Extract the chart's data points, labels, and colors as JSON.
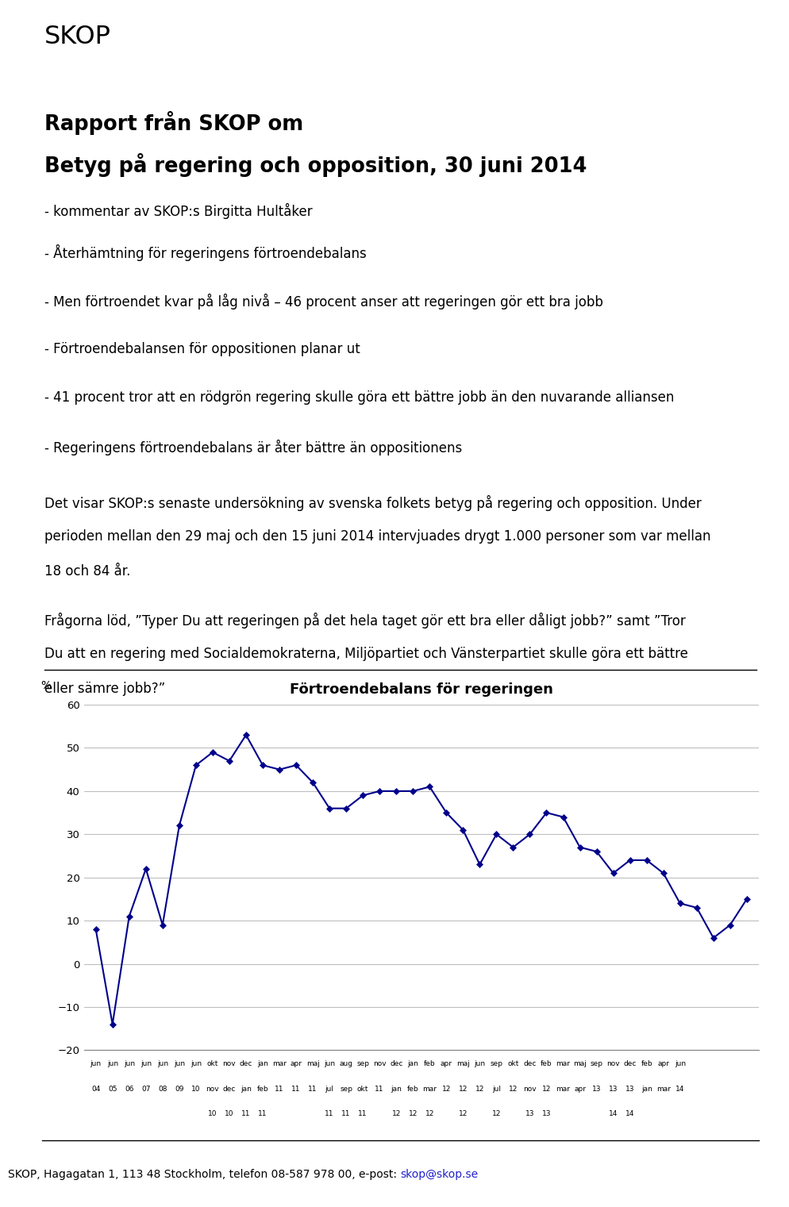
{
  "skop_header": "SKOP",
  "report_title_line1": "Rapport från SKOP om",
  "report_title_line2": "Betyg på regering och opposition, 30 juni 2014",
  "kommentar": "- kommentar av SKOP:s Birgitta Hultåker",
  "bullets": [
    "- Återhämtning för regeringens förtroendebalans",
    "- Men förtroendet kvar på låg nivå – 46 procent anser att regeringen gör ett bra jobb",
    "- Förtroendebalansen för oppositionen planar ut",
    "- 41 procent tror att en rödgrön regering skulle göra ett bättre jobb än den nuvarande alliansen",
    "- Regeringens förtroendebalans är åter bättre än oppositionens"
  ],
  "para1_lines": [
    "Det visar SKOP:s senaste undersökning av svenska folkets betyg på regering och opposition. Under",
    "perioden mellan den 29 maj och den 15 juni 2014 intervjuades drygt 1.000 personer som var mellan",
    "18 och 84 år."
  ],
  "para2_lines": [
    "Frågorna löd, ”Typer Du att regeringen på det hela taget gör ett bra eller dåligt jobb?” samt ”Tror",
    "Du att en regering med Socialdemokraterna, Miljöpartiet och Vänsterpartiet skulle göra ett bättre",
    "eller sämre jobb?”"
  ],
  "chart_title": "Förtroendebalans för regeringen",
  "ylabel_label": "%",
  "values": [
    8,
    -14,
    11,
    22,
    9,
    32,
    46,
    49,
    47,
    53,
    46,
    45,
    46,
    42,
    36,
    36,
    39,
    40,
    40,
    40,
    41,
    35,
    31,
    23,
    30,
    27,
    30,
    35,
    34,
    27,
    26,
    21,
    24,
    24,
    21,
    14,
    13,
    6,
    9,
    15
  ],
  "yticks": [
    -20,
    -10,
    0,
    10,
    20,
    30,
    40,
    50,
    60
  ],
  "ylim": [
    -20,
    60
  ],
  "line_color": "#00008B",
  "grid_color": "#BEBEBE",
  "footer_main": "SKOP, Hagagatan 1, 113 48 Stockholm, telefon 08-587 978 00, e-post: ",
  "footer_email": "skop@skop.se",
  "tick_row1": [
    "jun",
    "jun",
    "jun",
    "jun",
    "jun",
    "jun",
    "jun",
    "okt",
    "nov",
    "dec",
    "jan",
    "mar",
    "apr",
    "maj",
    "jun",
    "aug",
    "sep",
    "nov",
    "dec",
    "jan",
    "feb",
    "apr",
    "maj",
    "jun",
    "sep",
    "okt",
    "dec",
    "feb",
    "mar",
    "maj",
    "sep",
    "nov",
    "dec",
    "feb",
    "apr",
    "jun",
    "",
    "",
    "",
    ""
  ],
  "tick_row2": [
    "04",
    "05",
    "06",
    "07",
    "08",
    "09",
    "10",
    "nov",
    "dec",
    "jan",
    "feb",
    "11",
    "11",
    "11",
    "jul",
    "sep",
    "okt",
    "11",
    "jan",
    "feb",
    "mar",
    "12",
    "12",
    "12",
    "jul",
    "12",
    "nov",
    "12",
    "mar",
    "apr",
    "13",
    "13",
    "13",
    "jan",
    "mar",
    "14",
    "",
    "",
    "",
    ""
  ],
  "tick_row3": [
    "",
    "",
    "",
    "",
    "",
    "",
    "",
    "10",
    "10",
    "11",
    "11",
    "",
    "",
    "",
    "11",
    "11",
    "11",
    "",
    "12",
    "12",
    "12",
    "",
    "12",
    "",
    "12",
    "",
    "13",
    "13",
    "",
    "",
    "",
    "14",
    "14",
    "",
    "",
    "",
    "",
    "",
    "",
    ""
  ]
}
